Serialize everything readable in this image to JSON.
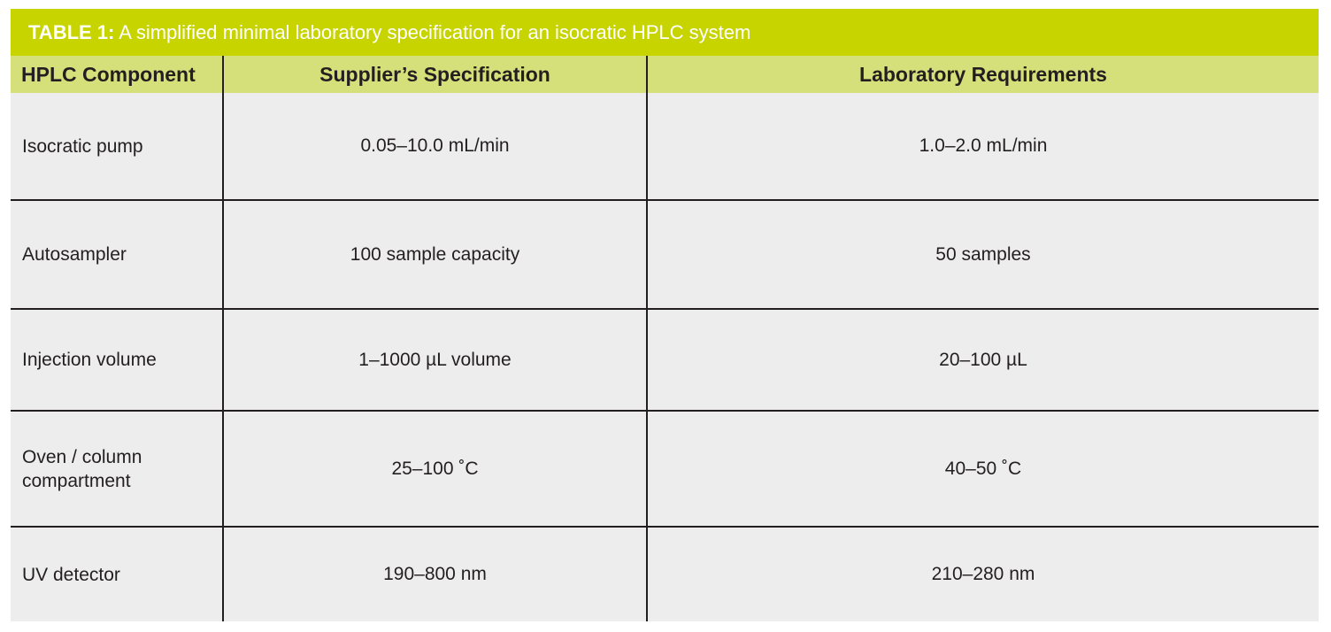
{
  "table": {
    "title_prefix": "TABLE 1:",
    "title_text": " A simplified minimal laboratory specification for an isocratic HPLC system",
    "headers": [
      "HPLC Component",
      "Supplier’s Specification",
      "Laboratory Requirements"
    ],
    "rows": [
      {
        "component_line1": "Isocratic pump",
        "component_line2": "",
        "supplier": "0.05–10.0 mL/min",
        "lab": "1.0–2.0 mL/min"
      },
      {
        "component_line1": "Autosampler",
        "component_line2": "",
        "supplier": "100 sample capacity",
        "lab": "50 samples"
      },
      {
        "component_line1": "Injection volume",
        "component_line2": "",
        "supplier": "1–1000 µL volume",
        "lab": "20–100 µL"
      },
      {
        "component_line1": "Oven / column",
        "component_line2": "compartment",
        "supplier": "25–100 ˚C",
        "lab": "40–50 ˚C"
      },
      {
        "component_line1": "UV detector",
        "component_line2": "",
        "supplier": "190–800 nm",
        "lab": "210–280 nm"
      }
    ],
    "colors": {
      "title_bar": "#c8d400",
      "header_row": "#d6e07a",
      "body_cells": "#ededed",
      "rules": "#231f20"
    }
  }
}
